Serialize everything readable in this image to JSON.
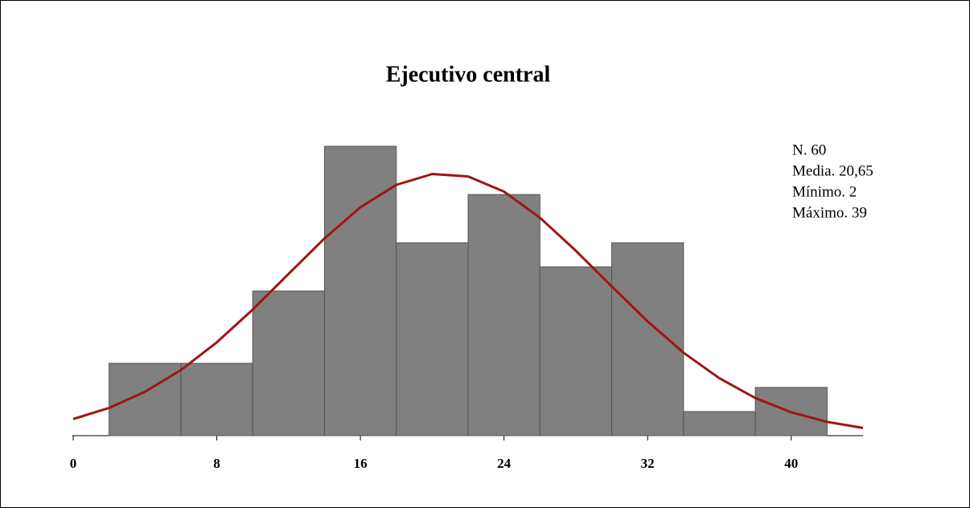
{
  "chart_data": {
    "type": "histogram",
    "title": "Ejecutivo central",
    "bins": [
      2,
      6,
      10,
      14,
      18,
      22,
      26,
      30,
      34,
      38,
      42
    ],
    "values": [
      3,
      3,
      6,
      12,
      8,
      10,
      7,
      8,
      1,
      2
    ],
    "color": "#808080",
    "xlim": [
      0,
      44
    ],
    "xticks": [
      0,
      8,
      16,
      24,
      32,
      40
    ],
    "curve": {
      "color": "#a01515",
      "x": [
        0,
        2,
        4,
        6,
        8,
        10,
        12,
        14,
        16,
        18,
        20,
        22,
        24,
        26,
        28,
        30,
        32,
        34,
        36,
        38,
        40,
        42,
        44
      ],
      "values": [
        0.69,
        1.15,
        1.82,
        2.72,
        3.87,
        5.23,
        6.71,
        8.18,
        9.47,
        10.4,
        10.85,
        10.75,
        10.12,
        9.04,
        7.67,
        6.19,
        4.74,
        3.44,
        2.38,
        1.56,
        0.97,
        0.57,
        0.32
      ]
    },
    "annotations": [
      "N. 60",
      "Media. 20,65",
      "Mínimo. 2",
      "Máximo. 39"
    ]
  }
}
